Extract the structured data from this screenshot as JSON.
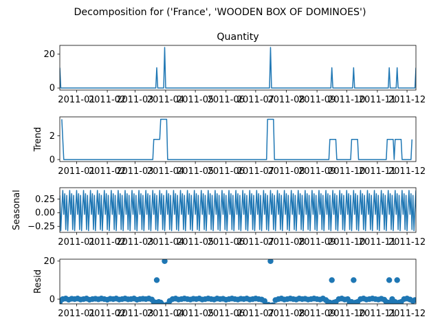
{
  "chart_data": {
    "type": "line",
    "title": "Decomposition for ('France', 'WOODEN BOX OF DOMINOES')",
    "x_tick_labels": [
      "2011-01",
      "2011-02",
      "2011-03",
      "2011-04",
      "2011-05",
      "2011-06",
      "2011-07",
      "2011-08",
      "2011-09",
      "2011-10",
      "2011-11",
      "2011-12"
    ],
    "x_range_days": [
      -17,
      343
    ],
    "x_origin_date": "2011-01-01",
    "panels": [
      {
        "name": "quantity",
        "title": "Quantity",
        "ylabel": "",
        "kind": "line",
        "ylim": [
          -1.2,
          25.2
        ],
        "yticks": [
          0,
          20
        ],
        "ytick_labels": [
          "0",
          "20"
        ],
        "points": [
          [
            -17,
            12
          ],
          [
            -16,
            0
          ],
          [
            80,
            0
          ],
          [
            81,
            12
          ],
          [
            82,
            0
          ],
          [
            88,
            0
          ],
          [
            89,
            24
          ],
          [
            90,
            0
          ],
          [
            195,
            0
          ],
          [
            196,
            24
          ],
          [
            197,
            0
          ],
          [
            257,
            0
          ],
          [
            258,
            12
          ],
          [
            259,
            0
          ],
          [
            279,
            0
          ],
          [
            280,
            12
          ],
          [
            281,
            0
          ],
          [
            315,
            0
          ],
          [
            316,
            12
          ],
          [
            317,
            0
          ],
          [
            323,
            0
          ],
          [
            324,
            12
          ],
          [
            325,
            0
          ],
          [
            342,
            0
          ],
          [
            343,
            12
          ]
        ]
      },
      {
        "name": "trend",
        "title": "",
        "ylabel": "Trend",
        "kind": "line",
        "ylim": [
          -0.17,
          3.6
        ],
        "yticks": [
          0,
          2
        ],
        "ytick_labels": [
          "0",
          "2"
        ],
        "points": [
          [
            -15,
            3.4
          ],
          [
            -14,
            1.7
          ],
          [
            -13,
            0
          ],
          [
            77,
            0
          ],
          [
            78,
            1.7
          ],
          [
            84,
            1.7
          ],
          [
            85,
            3.4
          ],
          [
            91,
            3.4
          ],
          [
            92,
            0
          ],
          [
            192,
            0
          ],
          [
            193,
            3.4
          ],
          [
            199,
            3.4
          ],
          [
            200,
            0
          ],
          [
            255,
            0
          ],
          [
            256,
            1.7
          ],
          [
            262,
            1.7
          ],
          [
            263,
            0
          ],
          [
            277,
            0
          ],
          [
            278,
            1.7
          ],
          [
            284,
            1.7
          ],
          [
            285,
            0
          ],
          [
            313,
            0
          ],
          [
            314,
            1.7
          ],
          [
            320,
            1.7
          ],
          [
            321,
            0
          ],
          [
            322,
            1.7
          ],
          [
            328,
            1.7
          ],
          [
            329,
            0
          ],
          [
            338,
            0
          ],
          [
            339,
            1.7
          ]
        ]
      },
      {
        "name": "seasonal",
        "title": "",
        "ylabel": "Seasonal",
        "kind": "seasonal",
        "ylim": [
          -0.36,
          0.46
        ],
        "yticks": [
          0.25,
          0,
          -0.25
        ],
        "ytick_labels": [
          "0.25",
          "0.00",
          "−0.25"
        ],
        "period": 7,
        "pattern": [
          0.41,
          -0.03,
          0.35,
          -0.31,
          0.32,
          -0.33,
          0.08
        ]
      },
      {
        "name": "resid",
        "title": "",
        "ylabel": "Resid",
        "kind": "scatter",
        "ylim": [
          -2.5,
          21.0
        ],
        "yticks": [
          0,
          20
        ],
        "ytick_labels": [
          "0",
          "20"
        ],
        "points": [
          [
            -17,
            -1.5
          ],
          [
            -14,
            0
          ],
          [
            -11,
            0.3
          ],
          [
            -8,
            -0.3
          ],
          [
            -5,
            0.2
          ],
          [
            -2,
            0
          ],
          [
            1,
            0.3
          ],
          [
            4,
            -0.2
          ],
          [
            7,
            0
          ],
          [
            10,
            0.3
          ],
          [
            13,
            -0.3
          ],
          [
            16,
            0
          ],
          [
            19,
            0.2
          ],
          [
            22,
            -0.1
          ],
          [
            25,
            0.3
          ],
          [
            28,
            0
          ],
          [
            31,
            -0.3
          ],
          [
            34,
            0.2
          ],
          [
            37,
            0
          ],
          [
            40,
            0.3
          ],
          [
            43,
            -0.2
          ],
          [
            46,
            0
          ],
          [
            49,
            0.3
          ],
          [
            52,
            -0.1
          ],
          [
            55,
            0
          ],
          [
            58,
            0.3
          ],
          [
            61,
            -0.3
          ],
          [
            64,
            0
          ],
          [
            67,
            0.2
          ],
          [
            70,
            0
          ],
          [
            73,
            0.3
          ],
          [
            76,
            -0.2
          ],
          [
            78,
            -1.5
          ],
          [
            80,
            -1.8
          ],
          [
            81,
            10
          ],
          [
            83,
            -1.5
          ],
          [
            85,
            -1.8
          ],
          [
            86,
            -3.2
          ],
          [
            87,
            -3.0
          ],
          [
            89,
            20
          ],
          [
            91,
            -3.0
          ],
          [
            92,
            -3.4
          ],
          [
            94,
            -1.0
          ],
          [
            97,
            0
          ],
          [
            100,
            0.3
          ],
          [
            103,
            -0.2
          ],
          [
            106,
            0
          ],
          [
            109,
            0.3
          ],
          [
            112,
            0
          ],
          [
            115,
            -0.2
          ],
          [
            118,
            0.2
          ],
          [
            121,
            0
          ],
          [
            124,
            0.3
          ],
          [
            127,
            -0.2
          ],
          [
            130,
            0
          ],
          [
            133,
            0.3
          ],
          [
            136,
            0
          ],
          [
            139,
            -0.2
          ],
          [
            142,
            0.3
          ],
          [
            145,
            0
          ],
          [
            148,
            0.2
          ],
          [
            151,
            -0.3
          ],
          [
            154,
            0
          ],
          [
            157,
            0.3
          ],
          [
            160,
            0
          ],
          [
            163,
            -0.2
          ],
          [
            166,
            0.2
          ],
          [
            169,
            0
          ],
          [
            172,
            0.3
          ],
          [
            175,
            -0.2
          ],
          [
            178,
            0
          ],
          [
            181,
            0.3
          ],
          [
            184,
            0
          ],
          [
            187,
            -0.2
          ],
          [
            190,
            -1.0
          ],
          [
            192,
            -3.2
          ],
          [
            194,
            -3.0
          ],
          [
            196,
            20
          ],
          [
            198,
            -3.2
          ],
          [
            199,
            -3.4
          ],
          [
            201,
            -0.5
          ],
          [
            204,
            0
          ],
          [
            207,
            0.3
          ],
          [
            210,
            -0.2
          ],
          [
            213,
            0
          ],
          [
            216,
            0.3
          ],
          [
            219,
            0
          ],
          [
            222,
            -0.2
          ],
          [
            225,
            0.3
          ],
          [
            228,
            0
          ],
          [
            231,
            0.2
          ],
          [
            234,
            -0.2
          ],
          [
            237,
            0
          ],
          [
            240,
            0.3
          ],
          [
            243,
            0
          ],
          [
            246,
            -0.2
          ],
          [
            249,
            0.3
          ],
          [
            252,
            -0.5
          ],
          [
            254,
            -1.5
          ],
          [
            256,
            -1.8
          ],
          [
            258,
            10
          ],
          [
            260,
            -1.8
          ],
          [
            262,
            -1.5
          ],
          [
            265,
            0
          ],
          [
            268,
            0.3
          ],
          [
            271,
            -0.2
          ],
          [
            274,
            0
          ],
          [
            276,
            -1.8
          ],
          [
            278,
            -1.5
          ],
          [
            280,
            10
          ],
          [
            282,
            -1.8
          ],
          [
            284,
            -1.5
          ],
          [
            287,
            0
          ],
          [
            290,
            0.3
          ],
          [
            293,
            -0.2
          ],
          [
            296,
            0
          ],
          [
            299,
            0.3
          ],
          [
            302,
            0
          ],
          [
            305,
            -0.2
          ],
          [
            308,
            0.2
          ],
          [
            311,
            -0.3
          ],
          [
            313,
            -1.5
          ],
          [
            315,
            -1.8
          ],
          [
            316,
            10
          ],
          [
            318,
            -1.8
          ],
          [
            319,
            0
          ],
          [
            320,
            -1.8
          ],
          [
            322,
            -1.5
          ],
          [
            324,
            10
          ],
          [
            326,
            -1.8
          ],
          [
            328,
            -1.5
          ],
          [
            331,
            0
          ],
          [
            334,
            0.3
          ],
          [
            337,
            -0.2
          ],
          [
            340,
            -1.0
          ],
          [
            342,
            -0.5
          ]
        ]
      }
    ]
  }
}
